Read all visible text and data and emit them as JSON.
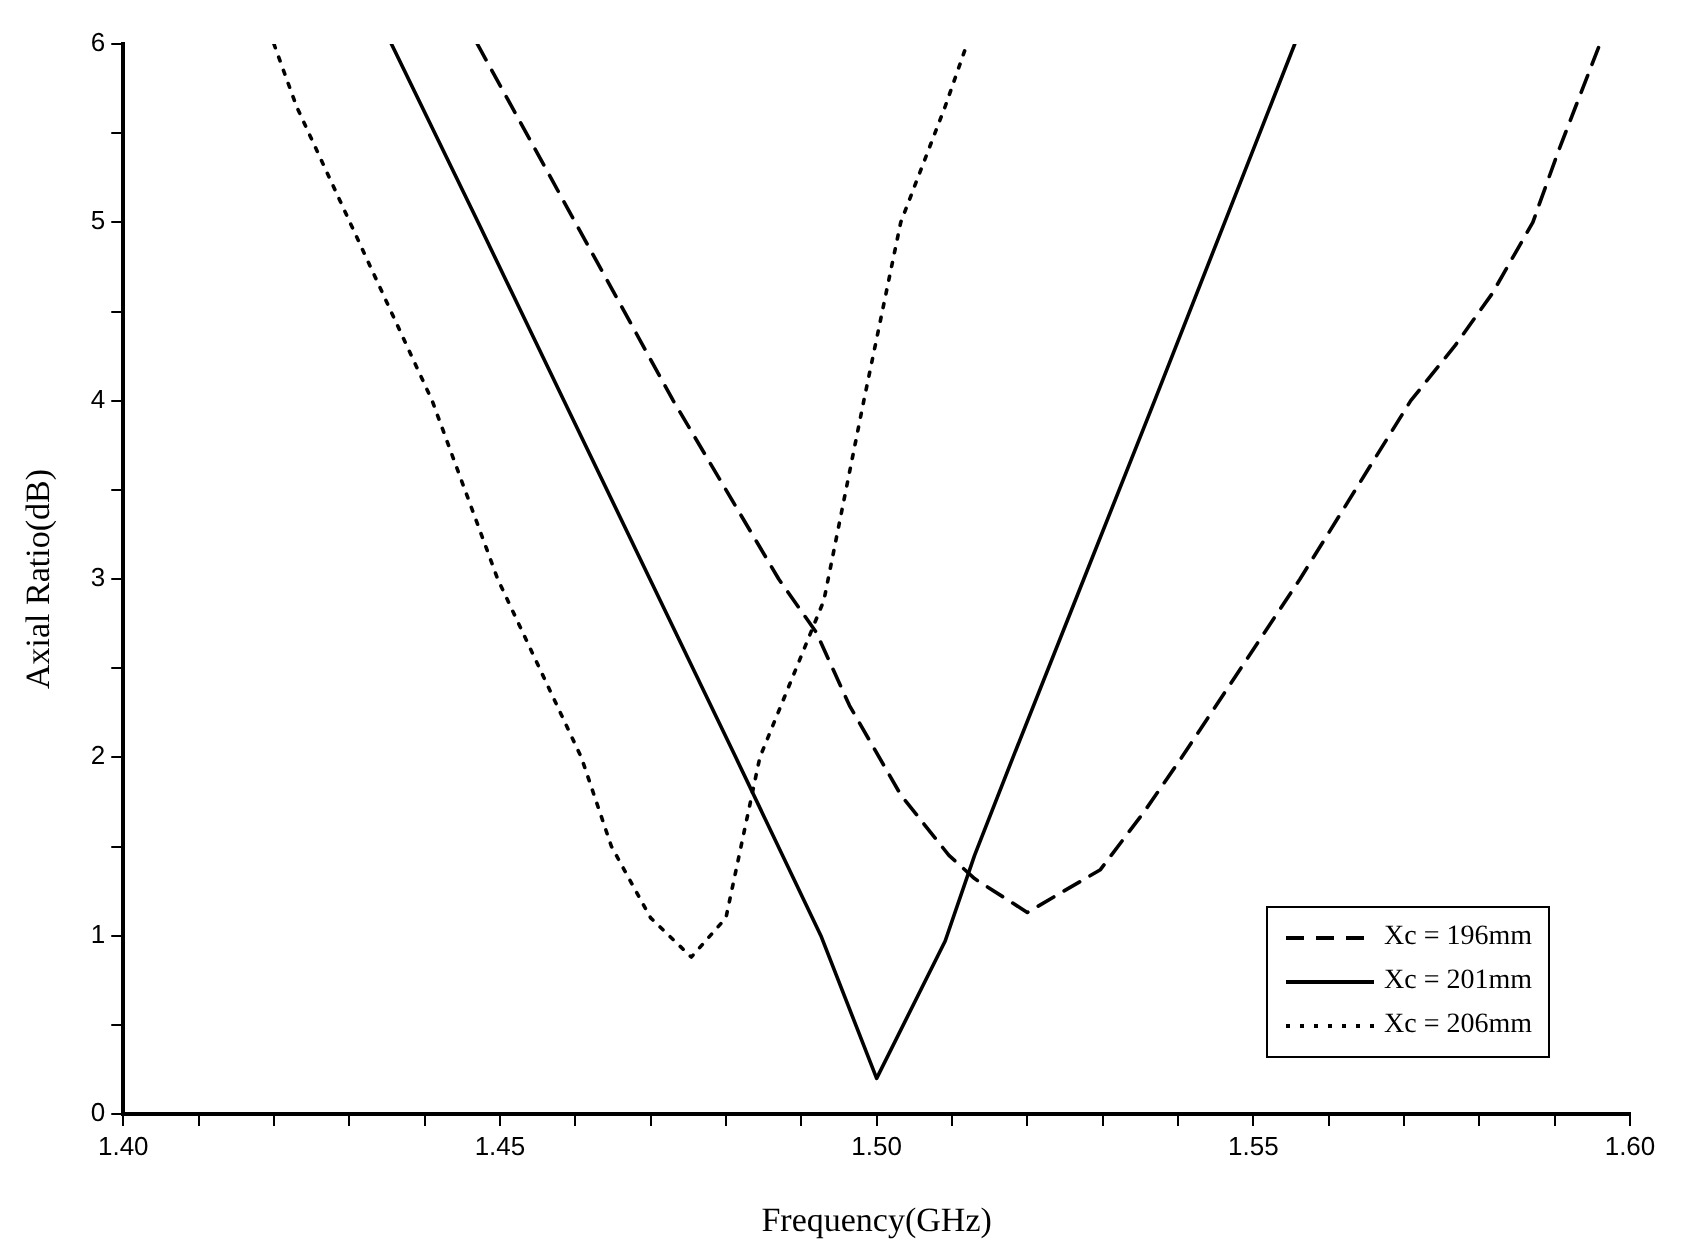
{
  "chart_data": {
    "type": "line",
    "xlabel": "Frequency(GHz)",
    "ylabel": "Axial Ratio(dB)",
    "xlim": [
      1.4,
      1.6
    ],
    "xticks": [
      {
        "value": 1.4,
        "label": "1.40"
      },
      {
        "value": 1.41,
        "label": null
      },
      {
        "value": 1.42,
        "label": null
      },
      {
        "value": 1.43,
        "label": null
      },
      {
        "value": 1.44,
        "label": null
      },
      {
        "value": 1.45,
        "label": "1.45"
      },
      {
        "value": 1.46,
        "label": null
      },
      {
        "value": 1.47,
        "label": null
      },
      {
        "value": 1.48,
        "label": null
      },
      {
        "value": 1.49,
        "label": null
      },
      {
        "value": 1.5,
        "label": "1.50"
      },
      {
        "value": 1.51,
        "label": null
      },
      {
        "value": 1.52,
        "label": null
      },
      {
        "value": 1.53,
        "label": null
      },
      {
        "value": 1.54,
        "label": null
      },
      {
        "value": 1.55,
        "label": "1.55"
      },
      {
        "value": 1.56,
        "label": null
      },
      {
        "value": 1.57,
        "label": null
      },
      {
        "value": 1.58,
        "label": null
      },
      {
        "value": 1.59,
        "label": null
      },
      {
        "value": 1.6,
        "label": "1.60"
      }
    ],
    "ylim": [
      0,
      6
    ],
    "yticks": [
      0,
      {
        "value": 0.5,
        "label": null
      },
      1,
      {
        "value": 1.5,
        "label": null
      },
      2,
      {
        "value": 2.5,
        "label": null
      },
      3,
      {
        "value": 3.5,
        "label": null
      },
      4,
      {
        "value": 4.5,
        "label": null
      },
      5,
      {
        "value": 5.5,
        "label": null
      },
      6
    ],
    "grid": false,
    "legend": "bottom right",
    "marker": "none",
    "series": [
      {
        "name": "Xc = 196mm",
        "color": "#000000",
        "line_style": "dashed",
        "x": [
          1.447,
          1.46,
          1.473,
          1.487,
          1.492,
          1.4964,
          1.5032,
          1.5096,
          1.513,
          1.52,
          1.5297,
          1.5356,
          1.5405,
          1.5562,
          1.5709,
          1.5768,
          1.5817,
          1.5871,
          1.5905,
          1.596
        ],
        "values": [
          6,
          5,
          4,
          3,
          2.7,
          2.29,
          1.79,
          1.45,
          1.32,
          1.13,
          1.37,
          1.7,
          2,
          3,
          4,
          4.31,
          4.6,
          5,
          5.4,
          6
        ]
      },
      {
        "name": "Xc = 201mm",
        "color": "#000000",
        "line_style": "solid",
        "x": [
          1.4356,
          1.4471,
          1.4585,
          1.4699,
          1.4813,
          1.4926,
          1.5,
          1.5091,
          1.513,
          1.5181,
          1.5275,
          1.5369,
          1.5462,
          1.5555
        ],
        "values": [
          6,
          5,
          4,
          3,
          2,
          1,
          0.2,
          0.97,
          1.45,
          2,
          3,
          4,
          5,
          6
        ]
      },
      {
        "name": "Xc = 206mm",
        "color": "#000000",
        "line_style": "dotted",
        "x": [
          1.42,
          1.423,
          1.441,
          1.4497,
          1.4608,
          1.4648,
          1.47,
          1.4754,
          1.48,
          1.4845,
          1.493,
          1.4983,
          1.5032,
          1.5091,
          1.512
        ],
        "values": [
          6,
          5.65,
          4,
          3,
          2,
          1.5,
          1.1,
          0.88,
          1.1,
          2,
          2.88,
          4,
          5,
          5.65,
          6
        ]
      }
    ]
  }
}
